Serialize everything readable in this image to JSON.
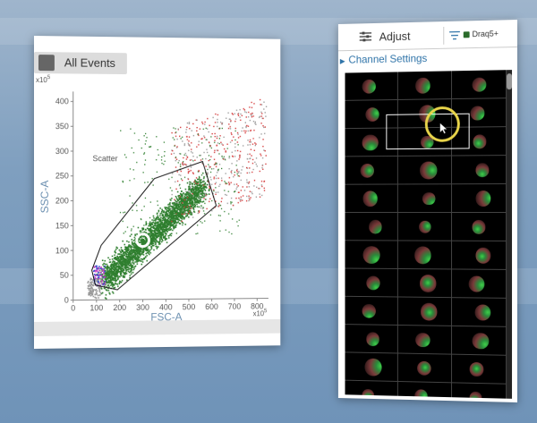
{
  "plot_panel": {
    "title": "All Events",
    "gate_label": "Scatter",
    "x_axis": {
      "label": "FSC-A",
      "exponent": "x10",
      "exponent_power": "5",
      "ticks": [
        "0",
        "100",
        "200",
        "300",
        "400",
        "500",
        "600",
        "700",
        "800"
      ]
    },
    "y_axis": {
      "label": "SSC-A",
      "exponent": "x10",
      "exponent_power": "5",
      "ticks": [
        "0",
        "50",
        "100",
        "150",
        "200",
        "250",
        "300",
        "350",
        "400"
      ]
    }
  },
  "image_panel": {
    "tab_adjust": "Adjust",
    "tab_channel": "Draq5+",
    "channel_settings": "Channel Settings"
  },
  "chart_data": {
    "type": "scatter",
    "xlabel": "FSC-A",
    "ylabel": "SSC-A",
    "xlim": [
      0,
      850
    ],
    "ylim": [
      0,
      420
    ],
    "gate_polygon": [
      [
        95,
        30
      ],
      [
        190,
        20
      ],
      [
        620,
        190
      ],
      [
        560,
        280
      ],
      [
        350,
        245
      ],
      [
        120,
        110
      ],
      [
        80,
        60
      ]
    ],
    "gate_name": "Scatter",
    "series_colors": {
      "gated": "#2f7f2f",
      "outside": "#d43a3a",
      "debris": "#9a9a9a",
      "doublets": "#c040c0"
    }
  }
}
